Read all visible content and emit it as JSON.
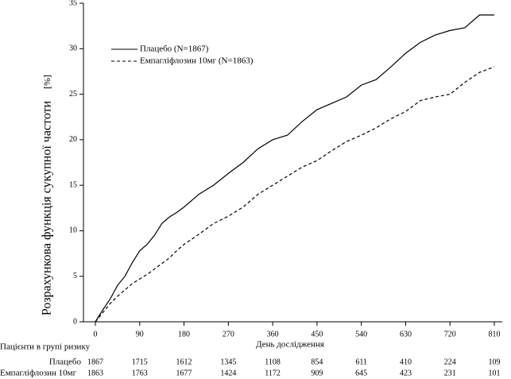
{
  "chart_data": {
    "type": "line",
    "x_label": "День дослідження",
    "y_label": "Розрахункова функція  сукупної частоти",
    "y_unit": "[%]",
    "x": [
      0,
      15,
      30,
      45,
      60,
      75,
      90,
      105,
      120,
      135,
      150,
      165,
      180,
      210,
      240,
      270,
      300,
      330,
      360,
      390,
      420,
      450,
      480,
      510,
      540,
      570,
      600,
      630,
      660,
      690,
      720,
      750,
      780,
      810
    ],
    "series": [
      {
        "name": "Плацебо (N=1867)",
        "color": "#000000",
        "dash": "solid",
        "values": [
          0,
          1.3,
          2.5,
          4,
          5,
          6.5,
          7.8,
          8.5,
          9.5,
          10.8,
          11.5,
          12,
          12.6,
          14,
          15,
          16.3,
          17.5,
          19,
          20,
          20.5,
          22,
          23.3,
          24,
          24.7,
          26,
          26.6,
          28,
          29.5,
          30.7,
          31.5,
          32,
          32.3,
          33.7,
          33.7
        ]
      },
      {
        "name": "Емпагліфлозин 10мг (N=1863)",
        "color": "#000000",
        "dash": "dashed",
        "values": [
          0,
          1,
          2,
          2.8,
          3.5,
          4.2,
          4.7,
          5.2,
          5.8,
          6.4,
          7,
          7.8,
          8.5,
          9.6,
          10.8,
          11.6,
          12.6,
          14,
          15,
          16,
          17,
          17.7,
          18.8,
          19.8,
          20.5,
          21.3,
          22.3,
          23.1,
          24.3,
          24.7,
          25,
          26.3,
          27.4,
          28
        ]
      }
    ],
    "xlim": [
      0,
      810
    ],
    "xticks": [
      0,
      90,
      180,
      270,
      360,
      450,
      540,
      630,
      720,
      810
    ],
    "ylim": [
      0,
      35
    ],
    "yticks": [
      0,
      5,
      10,
      15,
      20,
      25,
      30,
      35
    ],
    "legend": "upper left",
    "risk_table": {
      "title": "Пацієнти в групі ризику",
      "rows": [
        {
          "label": "Плацебо",
          "values": [
            1867,
            1715,
            1612,
            1345,
            1108,
            854,
            611,
            410,
            224,
            109
          ]
        },
        {
          "label": "Емпагліфлозин 10мг",
          "values": [
            1863,
            1763,
            1677,
            1424,
            1172,
            909,
            645,
            423,
            231,
            101
          ]
        }
      ]
    }
  }
}
